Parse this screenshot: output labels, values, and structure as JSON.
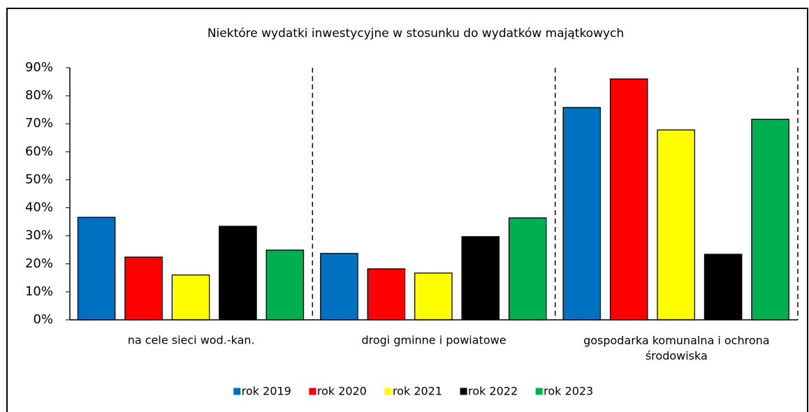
{
  "chart_data": {
    "type": "bar",
    "title": "Niektóre wydatki inwestycyjne w stosunku do wydatków majątkowych",
    "categories": [
      "na cele sieci wod.-kan.",
      "drogi gminne i powiatowe",
      "gospodarka komunalna i ochrona środowiska"
    ],
    "series": [
      {
        "name": "rok 2019",
        "color": "#0070c0",
        "values": [
          36.6,
          23.7,
          75.8
        ]
      },
      {
        "name": "rok 2020",
        "color": "#ff0000",
        "values": [
          22.4,
          18.2,
          86.0
        ]
      },
      {
        "name": "rok 2021",
        "color": "#ffff00",
        "values": [
          16.0,
          16.7,
          67.8
        ]
      },
      {
        "name": "rok 2022",
        "color": "#000000",
        "values": [
          33.4,
          29.7,
          23.4
        ]
      },
      {
        "name": "rok 2023",
        "color": "#00b050",
        "values": [
          24.9,
          36.4,
          71.6
        ]
      }
    ],
    "ylim": [
      0,
      90
    ],
    "yticks": [
      {
        "value": 0,
        "label": "0%"
      },
      {
        "value": 10,
        "label": "10%"
      },
      {
        "value": 20,
        "label": "20%"
      },
      {
        "value": 30,
        "label": "30%"
      },
      {
        "value": 40,
        "label": "40%"
      },
      {
        "value": 50,
        "label": "50%"
      },
      {
        "value": 60,
        "label": "60%"
      },
      {
        "value": 70,
        "label": "70%"
      },
      {
        "value": 80,
        "label": "80%"
      },
      {
        "value": 90,
        "label": "90%"
      }
    ],
    "legend": "bottom"
  }
}
